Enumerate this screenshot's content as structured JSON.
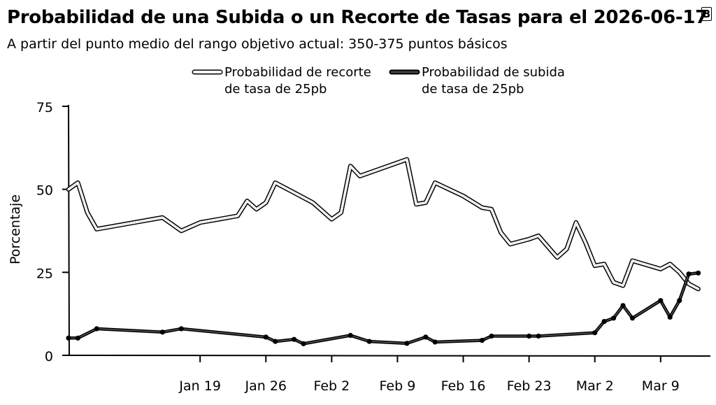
{
  "title": "Probabilidad de una Subida o un Recorte de Tasas para el 2026-06-17",
  "subtitle": "A partir del punto medio del rango objetivo actual: 350-375 puntos básicos",
  "logo_text": "B",
  "chart_data": {
    "type": "line",
    "ylabel": "Porcentaje",
    "xlabel": "",
    "ylim": [
      0,
      75
    ],
    "yticks": [
      0,
      25,
      50,
      75
    ],
    "xlim": [
      "2026-01-05",
      "2026-03-14"
    ],
    "xticks": [
      {
        "date": "2026-01-19",
        "label": "Jan 19"
      },
      {
        "date": "2026-01-26",
        "label": "Jan 26"
      },
      {
        "date": "2026-02-02",
        "label": "Feb 2"
      },
      {
        "date": "2026-02-09",
        "label": "Feb 9"
      },
      {
        "date": "2026-02-16",
        "label": "Feb 16"
      },
      {
        "date": "2026-02-23",
        "label": "Feb 23"
      },
      {
        "date": "2026-03-02",
        "label": "Mar 2"
      },
      {
        "date": "2026-03-09",
        "label": "Mar 9"
      }
    ],
    "legend_position": "top-center",
    "grid": false,
    "series": [
      {
        "name_line1": "Probabilidad de recorte",
        "name_line2": "de tasa de 25pb",
        "color": "#ffffff",
        "stroke": "#000000",
        "markers": false,
        "points": [
          [
            "2026-01-05",
            50
          ],
          [
            "2026-01-06",
            52
          ],
          [
            "2026-01-07",
            43
          ],
          [
            "2026-01-08",
            38
          ],
          [
            "2026-01-12",
            40
          ],
          [
            "2026-01-15",
            41.5
          ],
          [
            "2026-01-17",
            37.5
          ],
          [
            "2026-01-19",
            40
          ],
          [
            "2026-01-21",
            41
          ],
          [
            "2026-01-23",
            42
          ],
          [
            "2026-01-24",
            46.5
          ],
          [
            "2026-01-25",
            44
          ],
          [
            "2026-01-26",
            46
          ],
          [
            "2026-01-27",
            52
          ],
          [
            "2026-01-29",
            49
          ],
          [
            "2026-01-31",
            46
          ],
          [
            "2026-02-02",
            41
          ],
          [
            "2026-02-03",
            43
          ],
          [
            "2026-02-04",
            57
          ],
          [
            "2026-02-05",
            54
          ],
          [
            "2026-02-07",
            56
          ],
          [
            "2026-02-09",
            58
          ],
          [
            "2026-02-10",
            59
          ],
          [
            "2026-02-11",
            45.5
          ],
          [
            "2026-02-12",
            46
          ],
          [
            "2026-02-13",
            52
          ],
          [
            "2026-02-16",
            48
          ],
          [
            "2026-02-18",
            44.5
          ],
          [
            "2026-02-19",
            44
          ],
          [
            "2026-02-20",
            37
          ],
          [
            "2026-02-21",
            33.5
          ],
          [
            "2026-02-23",
            35
          ],
          [
            "2026-02-24",
            36
          ],
          [
            "2026-02-26",
            29.5
          ],
          [
            "2026-02-27",
            32
          ],
          [
            "2026-02-28",
            40
          ],
          [
            "2026-03-01",
            34
          ],
          [
            "2026-03-02",
            27
          ],
          [
            "2026-03-03",
            27.5
          ],
          [
            "2026-03-04",
            22
          ],
          [
            "2026-03-05",
            21
          ],
          [
            "2026-03-06",
            28.5
          ],
          [
            "2026-03-09",
            26
          ],
          [
            "2026-03-10",
            27.5
          ],
          [
            "2026-03-11",
            25
          ],
          [
            "2026-03-12",
            21.5
          ],
          [
            "2026-03-13",
            20
          ]
        ]
      },
      {
        "name_line1": "Probabilidad de subida",
        "name_line2": "de tasa de 25pb",
        "color": "#000000",
        "stroke": "#000000",
        "markers": true,
        "points": [
          [
            "2026-01-05",
            5.2
          ],
          [
            "2026-01-06",
            5.2
          ],
          [
            "2026-01-08",
            8
          ],
          [
            "2026-01-15",
            7
          ],
          [
            "2026-01-17",
            8
          ],
          [
            "2026-01-26",
            5.5
          ],
          [
            "2026-01-27",
            4.2
          ],
          [
            "2026-01-29",
            4.8
          ],
          [
            "2026-01-30",
            3.5
          ],
          [
            "2026-02-04",
            6
          ],
          [
            "2026-02-06",
            4.2
          ],
          [
            "2026-02-10",
            3.6
          ],
          [
            "2026-02-12",
            5.5
          ],
          [
            "2026-02-13",
            4
          ],
          [
            "2026-02-18",
            4.5
          ],
          [
            "2026-02-19",
            5.8
          ],
          [
            "2026-02-23",
            5.8
          ],
          [
            "2026-02-24",
            5.8
          ],
          [
            "2026-03-02",
            6.8
          ],
          [
            "2026-03-03",
            10.2
          ],
          [
            "2026-03-04",
            11.2
          ],
          [
            "2026-03-05",
            15
          ],
          [
            "2026-03-06",
            11.2
          ],
          [
            "2026-03-09",
            16.5
          ],
          [
            "2026-03-10",
            11.5
          ],
          [
            "2026-03-11",
            16.5
          ],
          [
            "2026-03-12",
            24.5
          ],
          [
            "2026-03-13",
            24.8
          ]
        ]
      }
    ]
  }
}
